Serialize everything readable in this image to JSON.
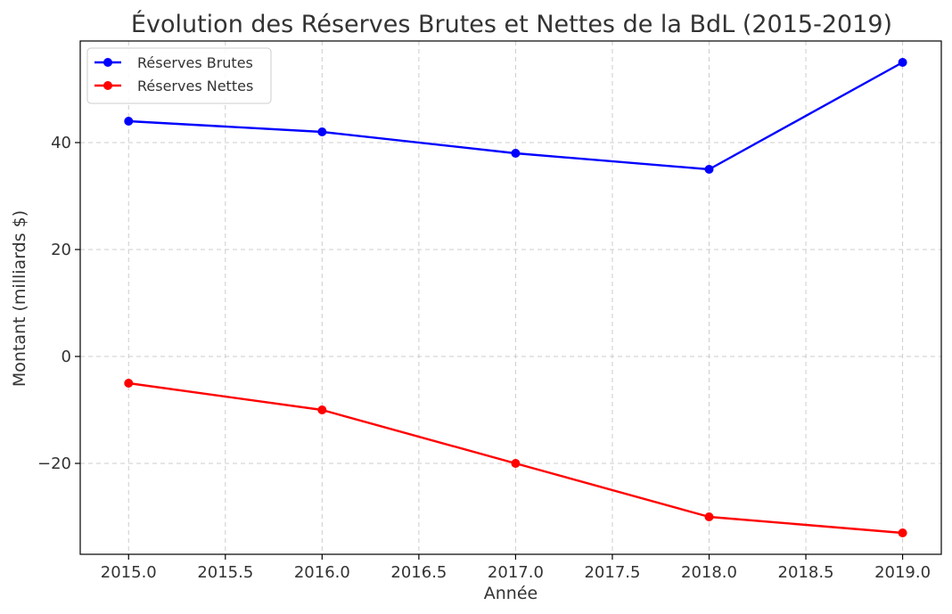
{
  "chart_data": {
    "type": "line",
    "title": "Évolution des Réserves Brutes et Nettes de la BdL (2015-2019)",
    "xlabel": "Année",
    "ylabel": "Montant (milliards $)",
    "x": [
      2015,
      2016,
      2017,
      2018,
      2019
    ],
    "xlim": [
      2014.75,
      2019.2
    ],
    "ylim": [
      -37,
      59
    ],
    "x_ticks": [
      2015.0,
      2015.5,
      2016.0,
      2016.5,
      2017.0,
      2017.5,
      2018.0,
      2018.5,
      2019.0
    ],
    "x_tick_labels": [
      "2015.0",
      "2015.5",
      "2016.0",
      "2016.5",
      "2017.0",
      "2017.5",
      "2018.0",
      "2018.5",
      "2019.0"
    ],
    "y_ticks": [
      -20,
      0,
      20,
      40
    ],
    "y_tick_labels": [
      "−20",
      "0",
      "20",
      "40"
    ],
    "grid": true,
    "legend_position": "top-left",
    "series": [
      {
        "name": "Réserves Brutes",
        "color": "#0000ff",
        "values": [
          44,
          42,
          38,
          35,
          55
        ]
      },
      {
        "name": "Réserves Nettes",
        "color": "#ff0000",
        "values": [
          -5,
          -10,
          -20,
          -30,
          -33
        ]
      }
    ]
  }
}
